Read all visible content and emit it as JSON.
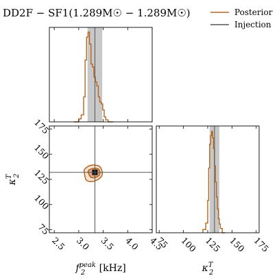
{
  "chart_data": {
    "type": "corner",
    "title": "DD2F − SF1(1.289M☉ − 1.289M☉)",
    "legend": {
      "placement": "top-right",
      "entries": [
        {
          "label": "Posterior",
          "color": "#b5651d"
        },
        {
          "label": "Injection",
          "color": "#555555"
        }
      ]
    },
    "parameters": [
      {
        "key": "f2peak",
        "label_main": "f",
        "label_sub": "2",
        "label_sup": "peak",
        "label_unit": " [kHz]",
        "range": [
          2.4,
          4.5
        ],
        "ticks": [
          "2.5",
          "3.0",
          "3.5",
          "4.0",
          "4.5"
        ],
        "tick_values": [
          2.5,
          3.0,
          3.5,
          4.0,
          4.5
        ],
        "injection": 3.33,
        "shaded_interval": [
          3.18,
          3.48
        ],
        "hist_edges": [
          2.9,
          3.0,
          3.05,
          3.1,
          3.13,
          3.16,
          3.19,
          3.22,
          3.25,
          3.28,
          3.31,
          3.34,
          3.37,
          3.4,
          3.43,
          3.46,
          3.49,
          3.52,
          3.55,
          3.6,
          3.7
        ],
        "hist_values": [
          0.0,
          0.03,
          0.07,
          0.25,
          0.62,
          0.85,
          0.9,
          0.78,
          0.58,
          0.55,
          0.45,
          0.4,
          0.36,
          0.25,
          0.2,
          0.18,
          0.12,
          0.05,
          0.02,
          0.0
        ]
      },
      {
        "key": "kappa2T",
        "label_main": "κ",
        "label_sub": "2",
        "label_sup": "T",
        "label_unit": "",
        "range": [
          72,
          178
        ],
        "ticks": [
          "75",
          "100",
          "125",
          "150",
          "175"
        ],
        "tick_values": [
          75,
          100,
          125,
          150,
          175
        ],
        "injection": 132,
        "shaded_interval": [
          127,
          137
        ],
        "hist_edges": [
          120,
          123,
          125,
          126,
          127,
          128,
          129,
          130,
          131,
          132,
          133,
          134,
          135,
          136,
          137,
          138,
          140,
          143
        ],
        "hist_values": [
          0.03,
          0.09,
          0.3,
          0.6,
          0.82,
          0.9,
          0.94,
          0.88,
          0.78,
          0.62,
          0.47,
          0.33,
          0.22,
          0.13,
          0.08,
          0.04,
          0.0
        ]
      }
    ],
    "joint": {
      "center": [
        3.33,
        132
      ],
      "contours": [
        {
          "level": "outer",
          "points": [
            [
              3.12,
              130
            ],
            [
              3.16,
              124
            ],
            [
              3.3,
              123
            ],
            [
              3.45,
              127
            ],
            [
              3.48,
              132
            ],
            [
              3.42,
              138
            ],
            [
              3.25,
              139
            ],
            [
              3.12,
              135
            ]
          ]
        },
        {
          "level": "inner",
          "points": [
            [
              3.2,
              131
            ],
            [
              3.25,
              127
            ],
            [
              3.35,
              127
            ],
            [
              3.43,
              130
            ],
            [
              3.41,
              135
            ],
            [
              3.3,
              136
            ],
            [
              3.2,
              134
            ]
          ]
        }
      ]
    }
  }
}
